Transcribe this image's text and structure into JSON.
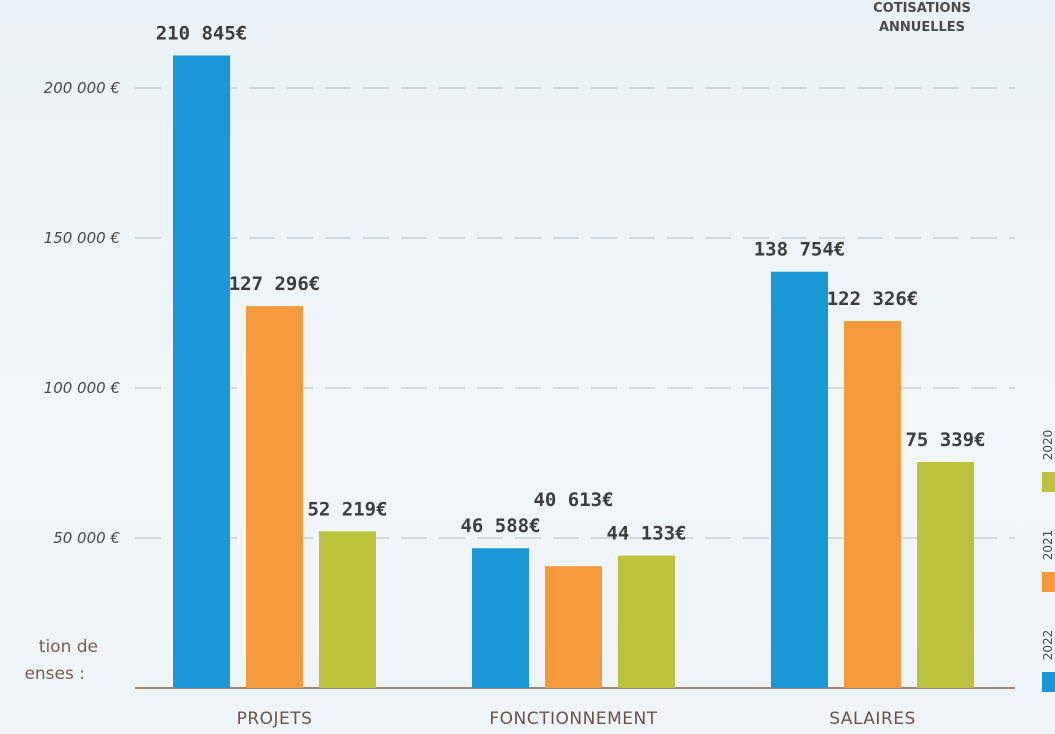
{
  "chart_data": {
    "type": "bar",
    "annotations": [
      "COTISATIONS",
      "ANNUELLES",
      "tion de",
      "enses :"
    ],
    "categories": [
      "PROJETS",
      "FONCTIONNEMENT",
      "SALAIRES"
    ],
    "series": [
      {
        "name": "2022",
        "color": "#1a97d5",
        "values": [
          210845,
          46588,
          138754
        ],
        "value_labels": [
          "210 845€",
          "46 588€",
          "138 754€"
        ]
      },
      {
        "name": "2021",
        "color": "#f59a3a",
        "values": [
          127296,
          40613,
          122326
        ],
        "value_labels": [
          "127 296€",
          "40 613€",
          "122 326€"
        ]
      },
      {
        "name": "2020",
        "color": "#bcc23c",
        "values": [
          52219,
          44133,
          75339
        ],
        "value_labels": [
          "52 219€",
          "44 133€",
          "75 339€"
        ]
      }
    ],
    "ylim": [
      0,
      220000
    ],
    "yticks": [
      {
        "value": 50000,
        "label": "50 000 €"
      },
      {
        "value": 100000,
        "label": "100 000 €"
      },
      {
        "value": 150000,
        "label": "150 000 €"
      },
      {
        "value": 200000,
        "label": "200 000 €"
      }
    ],
    "grid": true
  }
}
